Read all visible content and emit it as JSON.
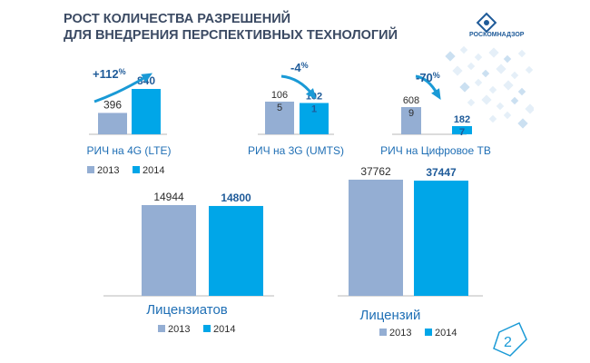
{
  "title": {
    "line1": "РОСТ КОЛИЧЕСТВА РАЗРЕШЕНИЙ",
    "line2": "ДЛЯ ВНЕДРЕНИЯ ПЕРСПЕКТИВНЫХ ТЕХНОЛОГИЙ"
  },
  "logo": {
    "text": "РОСКОМНАДЗОР"
  },
  "page_number": "2",
  "colors": {
    "y2013": "#94aed3",
    "y2014": "#00a6e8",
    "text_blue": "#1f6fb5",
    "arrow": "#1a9ad6",
    "title": "#3b4a63"
  },
  "chart_data": [
    {
      "type": "bar",
      "categories": [
        "2013",
        "2014"
      ],
      "values": [
        396,
        840
      ],
      "value_labels": [
        [
          "396"
        ],
        [
          "840"
        ]
      ],
      "xlabel": "РИЧ на 4G (LTE)",
      "change": "+112",
      "change_unit": "%",
      "legend": [
        "2013",
        "2014"
      ]
    },
    {
      "type": "bar",
      "categories": [
        "2013",
        "2014"
      ],
      "values": [
        1065,
        1021
      ],
      "value_labels": [
        [
          "106",
          "5"
        ],
        [
          "102",
          "1"
        ]
      ],
      "xlabel": "РИЧ на 3G (UMTS)",
      "change": "-4",
      "change_unit": "%"
    },
    {
      "type": "bar",
      "categories": [
        "2013",
        "2014"
      ],
      "values": [
        6089,
        1827
      ],
      "value_labels": [
        [
          "608",
          "9"
        ],
        [
          "182",
          "7"
        ]
      ],
      "xlabel": "РИЧ на Цифровое ТВ",
      "change": "-70",
      "change_unit": "%"
    },
    {
      "type": "bar",
      "categories": [
        "2013",
        "2014"
      ],
      "values": [
        14944,
        14800
      ],
      "value_labels": [
        [
          "14944"
        ],
        [
          "14800"
        ]
      ],
      "xlabel": "Лицензиатов",
      "legend": [
        "2013",
        "2014"
      ]
    },
    {
      "type": "bar",
      "categories": [
        "2013",
        "2014"
      ],
      "values": [
        37762,
        37447
      ],
      "value_labels": [
        [
          "37762"
        ],
        [
          "37447"
        ]
      ],
      "xlabel": "Лицензий",
      "legend": [
        "2013",
        "2014"
      ]
    }
  ]
}
